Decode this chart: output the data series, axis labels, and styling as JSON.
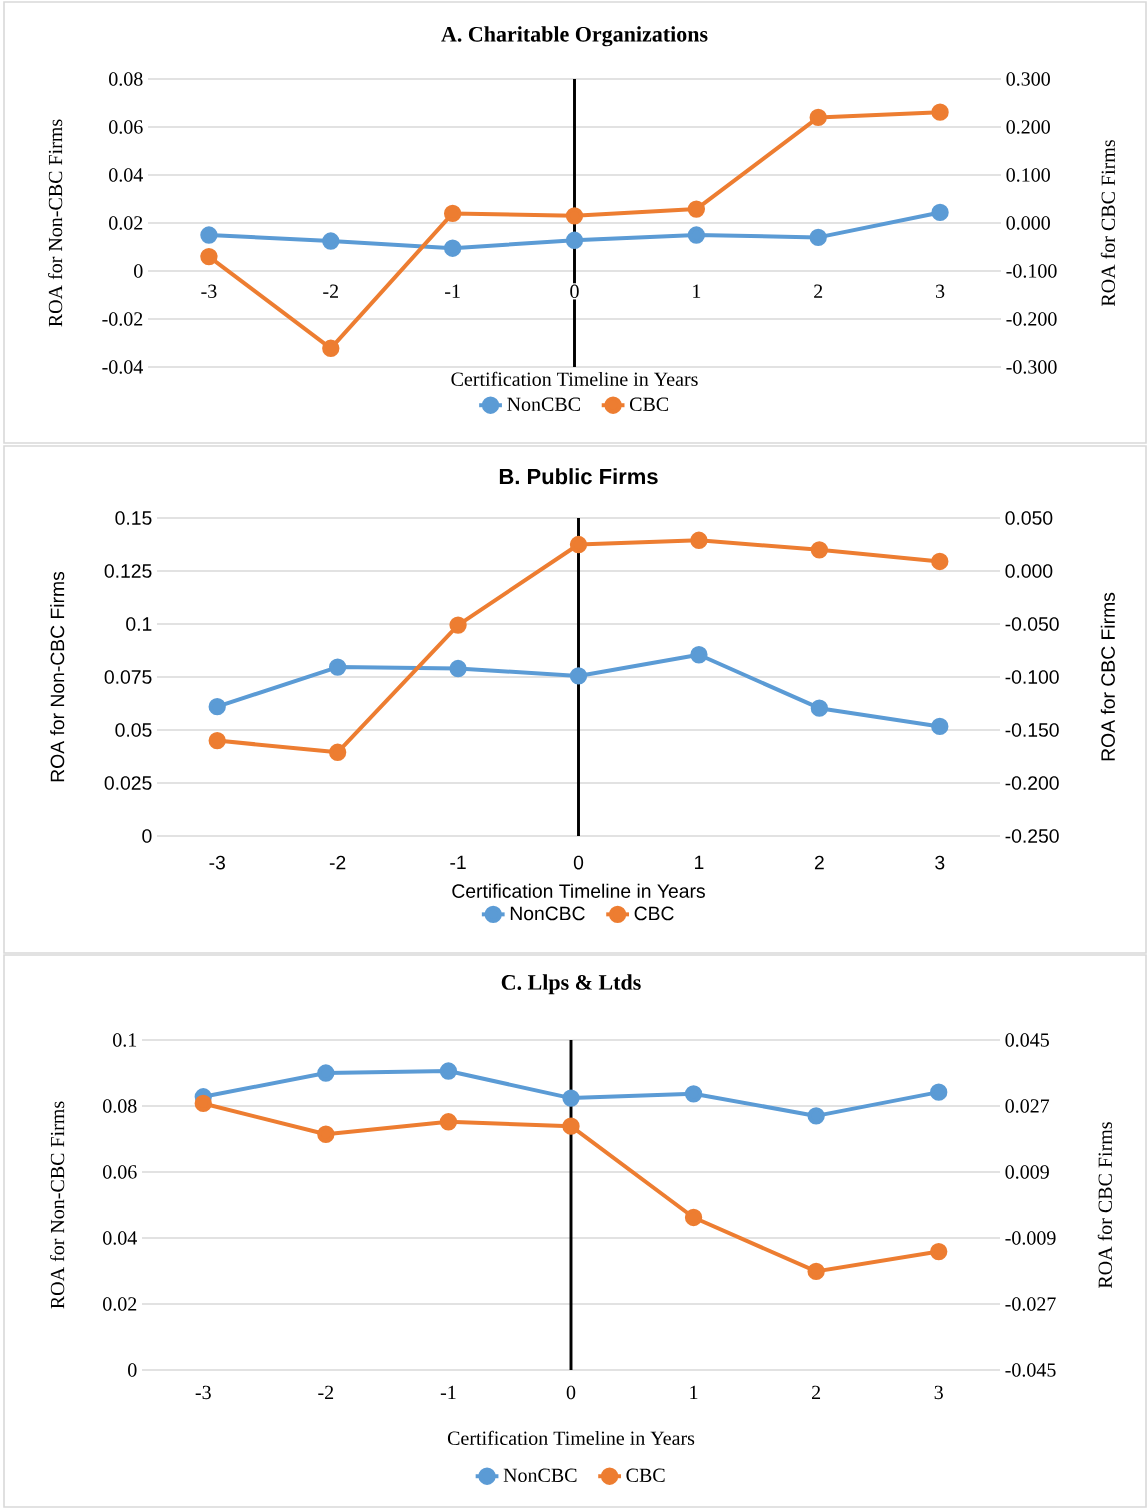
{
  "chart_data": [
    {
      "type": "line",
      "title": "A. Charitable Organizations",
      "xlabel": "Certification Timeline in Years",
      "ylabel": "ROA for Non-CBC Firms",
      "y2label": "ROA for CBC Firms",
      "categories": [
        "-3",
        "-2",
        "-1",
        "0",
        "1",
        "2",
        "3"
      ],
      "series": [
        {
          "name": "NonCBC",
          "color": "#5b9bd5",
          "values": [
            0.015,
            0.0125,
            0.0095,
            0.0128,
            0.015,
            0.014,
            0.0244
          ]
        },
        {
          "name": "CBC",
          "color": "#ed7d31",
          "axis": "y2",
          "values": [
            -0.07,
            -0.261,
            0.02,
            0.015,
            0.029,
            0.22,
            0.231
          ]
        }
      ],
      "ylim": [
        -0.04,
        0.08
      ],
      "yticks": [
        -0.04,
        -0.02,
        0,
        0.02,
        0.04,
        0.06,
        0.08
      ],
      "y2lim": [
        -0.3,
        0.3
      ],
      "y2ticks": [
        {
          "value": -0.3,
          "label": "-0.300"
        },
        {
          "value": -0.2,
          "label": "-0.200"
        },
        {
          "value": -0.1,
          "label": "-0.100"
        },
        {
          "value": 0,
          "label": "0.000"
        },
        {
          "value": 0.1,
          "label": "0.100"
        },
        {
          "value": 0.2,
          "label": "0.200"
        },
        {
          "value": 0.3,
          "label": "0.300"
        }
      ],
      "ref_lines": [
        {
          "axis": "x",
          "value": "0",
          "color": "#000000"
        }
      ],
      "grid": "y",
      "legend": "bottom",
      "marker": "circle",
      "line_style": "solid"
    },
    {
      "type": "line",
      "title": "B. Public Firms",
      "xlabel": "Certification Timeline in Years",
      "ylabel": "ROA for Non-CBC Firms",
      "y2label": "ROA for CBC Firms",
      "categories": [
        "-3",
        "-2",
        "-1",
        "0",
        "1",
        "2",
        "3"
      ],
      "series": [
        {
          "name": "NonCBC",
          "color": "#5b9bd5",
          "values": [
            0.061,
            0.0797,
            0.079,
            0.0755,
            0.0855,
            0.0603,
            0.0517
          ]
        },
        {
          "name": "CBC",
          "color": "#ed7d31",
          "axis": "y2",
          "values": [
            -0.16,
            -0.171,
            -0.051,
            0.025,
            0.029,
            0.02,
            0.009
          ]
        }
      ],
      "ylim": [
        0,
        0.15
      ],
      "yticks": [
        0,
        0.025,
        0.05,
        0.075,
        0.1,
        0.125,
        0.15
      ],
      "y2lim": [
        -0.25,
        0.05
      ],
      "y2ticks": [
        {
          "value": -0.25,
          "label": "-0.250"
        },
        {
          "value": -0.2,
          "label": "-0.200"
        },
        {
          "value": -0.15,
          "label": "-0.150"
        },
        {
          "value": -0.1,
          "label": "-0.100"
        },
        {
          "value": -0.05,
          "label": "-0.050"
        },
        {
          "value": 0,
          "label": "0.000"
        },
        {
          "value": 0.05,
          "label": "0.050"
        }
      ],
      "ref_lines": [
        {
          "axis": "x",
          "value": "0",
          "color": "#000000"
        }
      ],
      "grid": "y",
      "legend": "bottom",
      "marker": "circle",
      "line_style": "solid"
    },
    {
      "type": "line",
      "title": "C. Llps & Ltds",
      "xlabel": "Certification Timeline in Years",
      "ylabel": "ROA for Non-CBC Firms",
      "y2label": "ROA for CBC Firms",
      "categories": [
        "-3",
        "-2",
        "-1",
        "0",
        "1",
        "2",
        "3"
      ],
      "series": [
        {
          "name": "NonCBC",
          "color": "#5b9bd5",
          "values": [
            0.0828,
            0.09,
            0.0906,
            0.0824,
            0.0837,
            0.077,
            0.0842
          ]
        },
        {
          "name": "CBC",
          "color": "#ed7d31",
          "axis": "y2",
          "values": [
            0.0277,
            0.0193,
            0.0227,
            0.0215,
            -0.0034,
            -0.0181,
            -0.0127
          ]
        }
      ],
      "ylim": [
        0,
        0.1
      ],
      "yticks": [
        0,
        0.02,
        0.04,
        0.06,
        0.08,
        0.1
      ],
      "y2lim": [
        -0.045,
        0.045
      ],
      "y2ticks": [
        {
          "value": -0.045,
          "label": "-0.045"
        },
        {
          "value": -0.027,
          "label": "-0.027"
        },
        {
          "value": -0.009,
          "label": "-0.009"
        },
        {
          "value": 0.009,
          "label": "0.009"
        },
        {
          "value": 0.027,
          "label": "0.027"
        },
        {
          "value": 0.045,
          "label": "0.045"
        }
      ],
      "ref_lines": [
        {
          "axis": "x",
          "value": "0",
          "color": "#000000"
        }
      ],
      "grid": "y",
      "legend": "bottom",
      "marker": "circle",
      "line_style": "solid"
    }
  ]
}
